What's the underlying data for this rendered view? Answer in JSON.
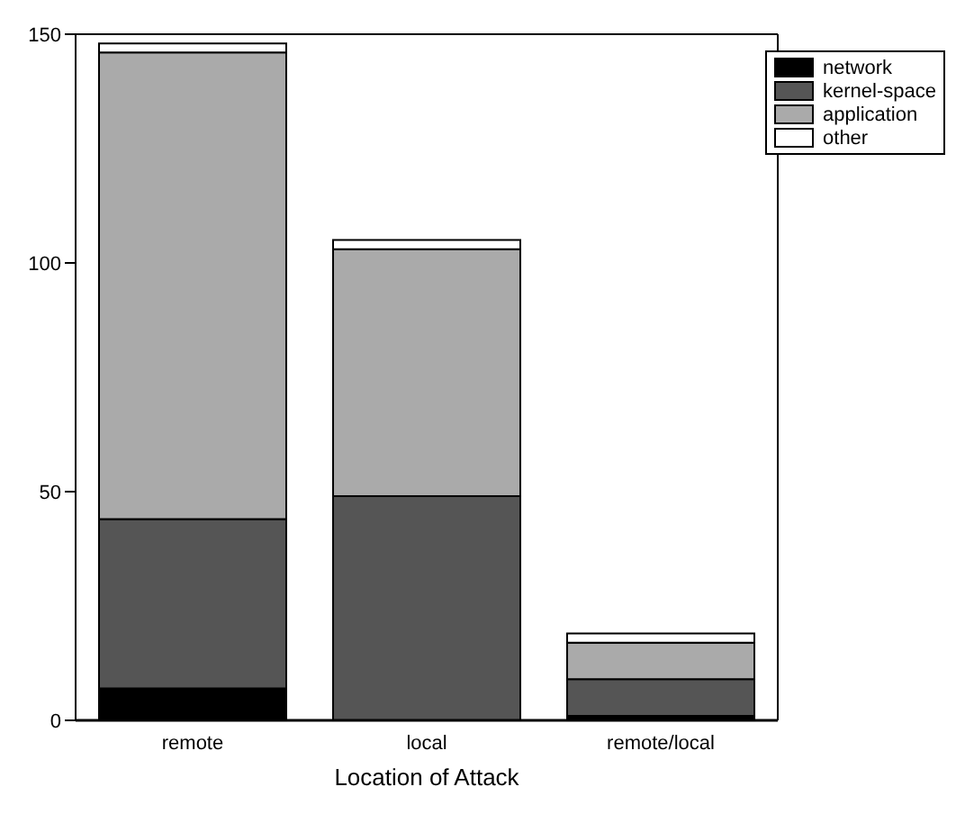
{
  "chart_data": {
    "type": "bar",
    "xlabel": "Location of Attack",
    "categories": [
      "remote",
      "local",
      "remote/local"
    ],
    "stacked": true,
    "ylim": [
      0,
      150
    ],
    "yticks": [
      0,
      50,
      100,
      150
    ],
    "legend": "top right",
    "series": [
      {
        "name": "network",
        "color": "#000000",
        "values": [
          7,
          0,
          1
        ]
      },
      {
        "name": "kernel-space",
        "color": "#555555",
        "values": [
          37,
          49,
          8
        ]
      },
      {
        "name": "application",
        "color": "#aaaaaa",
        "values": [
          102,
          54,
          8
        ]
      },
      {
        "name": "other",
        "color": "#ffffff",
        "values": [
          2,
          2,
          2
        ]
      }
    ]
  }
}
